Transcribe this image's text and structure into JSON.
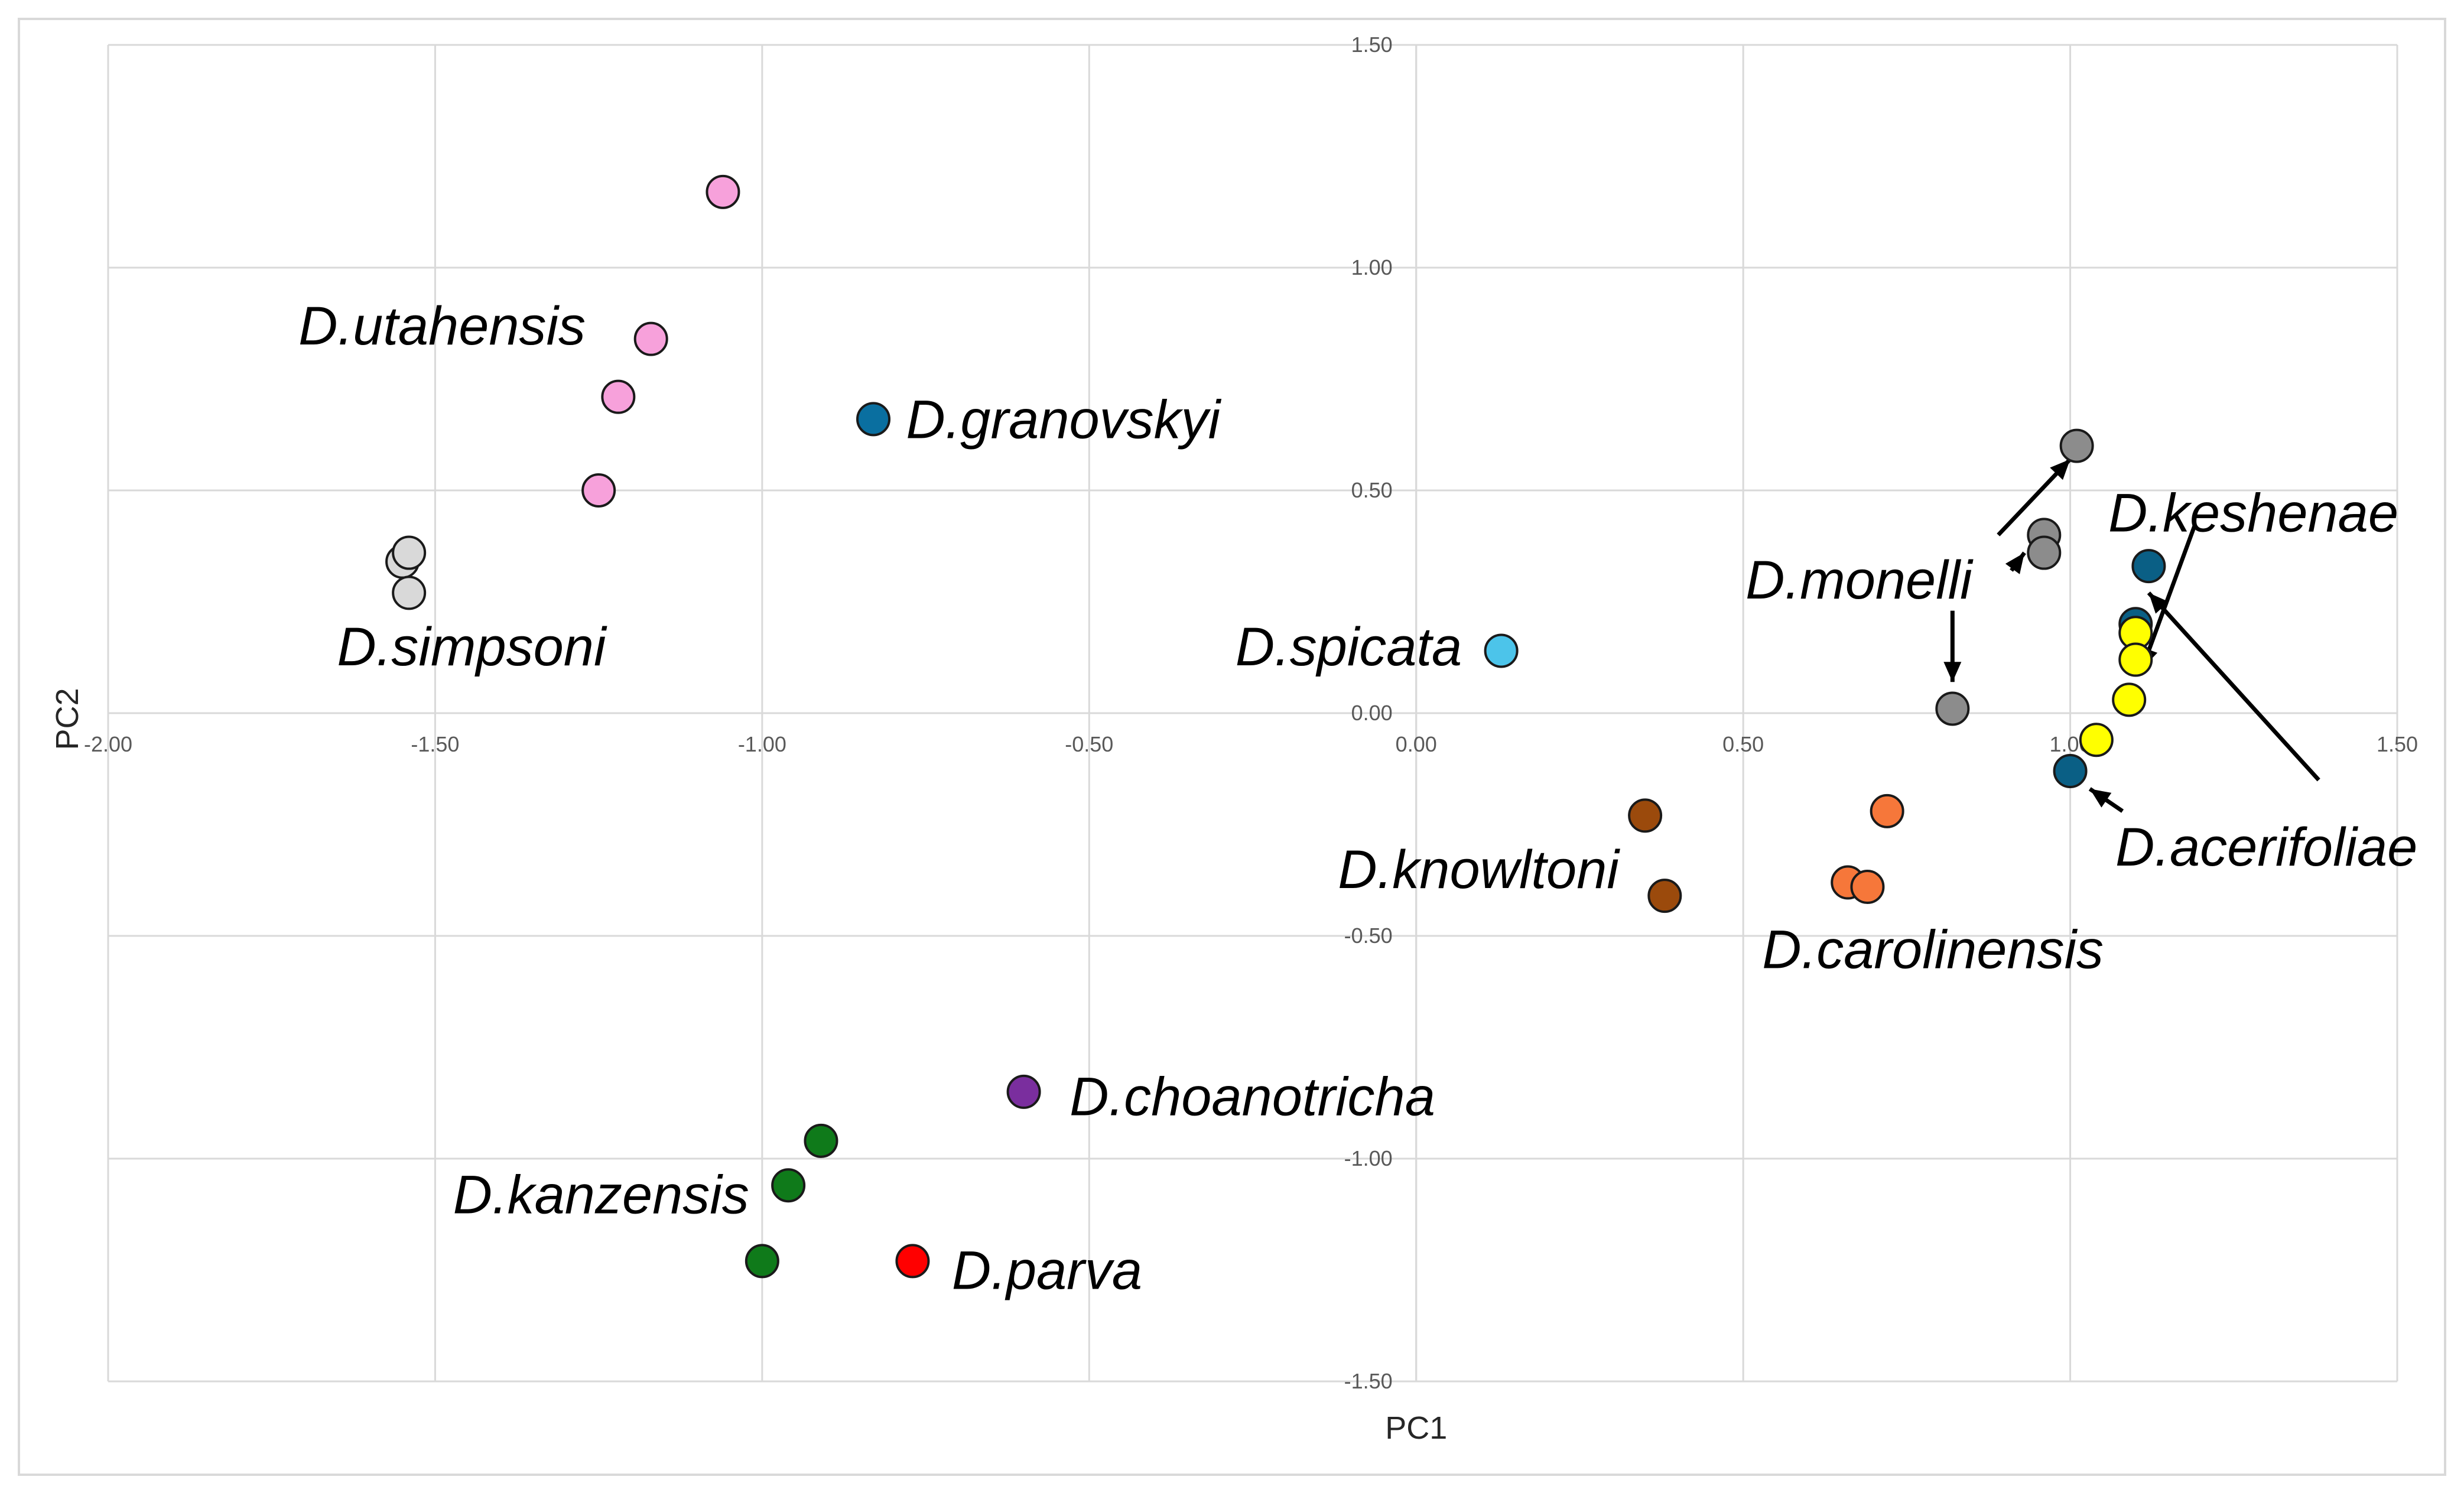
{
  "chart_data": {
    "type": "scatter",
    "xlabel": "PC1",
    "ylabel": "PC2",
    "xlim": [
      -2.0,
      1.5
    ],
    "ylim": [
      -1.5,
      1.5
    ],
    "x_ticks": [
      "-2.00",
      "-1.50",
      "-1.00",
      "-0.50",
      "0.00",
      "0.50",
      "1.00",
      "1.50"
    ],
    "y_ticks": [
      "1.50",
      "1.00",
      "0.50",
      "0.00",
      "-0.50",
      "-1.00",
      "-1.50"
    ],
    "grid": true,
    "legend": "none",
    "series": [
      {
        "name": "D.utahensis",
        "color": "#f7a1db",
        "points": [
          [
            -1.06,
            1.17
          ],
          [
            -1.17,
            0.84
          ],
          [
            -1.22,
            0.71
          ],
          [
            -1.25,
            0.5
          ]
        ]
      },
      {
        "name": "D.simpsoni",
        "color": "#d9d9d9",
        "points": [
          [
            -1.55,
            0.34
          ],
          [
            -1.54,
            0.36
          ],
          [
            -1.54,
            0.27
          ]
        ]
      },
      {
        "name": "D.granovskyi",
        "color": "#0a6fa0",
        "points": [
          [
            -0.83,
            0.66
          ]
        ]
      },
      {
        "name": "D.spicata",
        "color": "#4cc4ea",
        "points": [
          [
            0.13,
            0.14
          ]
        ]
      },
      {
        "name": "D.monelli",
        "color": "#8c8c8c",
        "points": [
          [
            1.01,
            0.6
          ],
          [
            0.96,
            0.4
          ],
          [
            0.96,
            0.36
          ],
          [
            0.82,
            0.01
          ]
        ]
      },
      {
        "name": "D.keshenae",
        "color": "#0a5f85",
        "points": [
          [
            1.12,
            0.33
          ],
          [
            1.1,
            0.2
          ]
        ]
      },
      {
        "name": "D.acerifoliae",
        "color": "#0a5f85",
        "points": [
          [
            1.0,
            -0.13
          ]
        ]
      },
      {
        "name": "",
        "color": "#ffff00",
        "points": [
          [
            1.1,
            0.18
          ],
          [
            1.1,
            0.12
          ],
          [
            1.09,
            0.03
          ],
          [
            1.04,
            -0.06
          ]
        ]
      },
      {
        "name": "D.knowltoni",
        "color": "#9b4a0c",
        "points": [
          [
            0.35,
            -0.23
          ],
          [
            0.38,
            -0.41
          ]
        ]
      },
      {
        "name": "D.carolinensis",
        "color": "#f6773a",
        "points": [
          [
            0.72,
            -0.22
          ],
          [
            0.66,
            -0.38
          ],
          [
            0.69,
            -0.39
          ]
        ]
      },
      {
        "name": "D.choanotricha",
        "color": "#7a2e9e",
        "points": [
          [
            -0.6,
            -0.85
          ]
        ]
      },
      {
        "name": "D.kanzensis",
        "color": "#0f7a1a",
        "points": [
          [
            -0.91,
            -0.96
          ],
          [
            -0.96,
            -1.06
          ],
          [
            -1.0,
            -1.23
          ]
        ]
      },
      {
        "name": "D.parva",
        "color": "#ff0000",
        "points": [
          [
            -0.77,
            -1.23
          ]
        ]
      }
    ],
    "annotations": [
      {
        "text": "D.utahensis",
        "x": -1.27,
        "y": 0.87
      },
      {
        "text": "D.granovskyi",
        "x": -0.78,
        "y": 0.66
      },
      {
        "text": "D.simpsoni",
        "x": -1.65,
        "y": 0.15
      },
      {
        "text": "D.spicata",
        "x": 0.07,
        "y": 0.15
      },
      {
        "text": "D.monelli",
        "x": 0.85,
        "y": 0.3
      },
      {
        "text": "D.keshenae",
        "x": 1.28,
        "y": 0.45
      },
      {
        "text": "D.acerifoliae",
        "x": 1.3,
        "y": -0.3
      },
      {
        "text": "D.knowltoni",
        "x": 0.31,
        "y": -0.35
      },
      {
        "text": "D.carolinensis",
        "x": 0.79,
        "y": -0.53
      },
      {
        "text": "D.choanotricha",
        "x": -0.53,
        "y": -0.86
      },
      {
        "text": "D.kanzensis",
        "x": -1.02,
        "y": -1.08
      },
      {
        "text": "D.parva",
        "x": -0.71,
        "y": -1.25
      }
    ]
  }
}
